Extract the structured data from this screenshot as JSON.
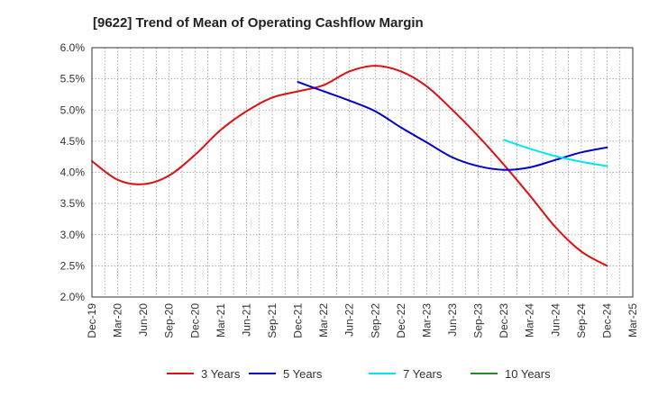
{
  "chart_data": {
    "type": "line",
    "title": "[9622]  Trend of Mean of Operating Cashflow Margin",
    "xlabel": "",
    "ylabel": "",
    "x_ticks": [
      "Dec-19",
      "Mar-20",
      "Jun-20",
      "Sep-20",
      "Dec-20",
      "Mar-21",
      "Jun-21",
      "Sep-21",
      "Dec-21",
      "Mar-22",
      "Jun-22",
      "Sep-22",
      "Dec-22",
      "Mar-23",
      "Jun-23",
      "Sep-23",
      "Dec-23",
      "Mar-24",
      "Jun-24",
      "Sep-24",
      "Dec-24",
      "Mar-25"
    ],
    "y_ticks": [
      "2.0%",
      "2.5%",
      "3.0%",
      "3.5%",
      "4.0%",
      "4.5%",
      "5.0%",
      "5.5%",
      "6.0%"
    ],
    "ylim": [
      2.0,
      6.0
    ],
    "grid": true,
    "series": [
      {
        "name": "3 Years",
        "color": "#dd1111",
        "values": [
          4.18,
          3.88,
          3.81,
          3.95,
          4.28,
          4.68,
          4.98,
          5.2,
          5.3,
          5.4,
          5.62,
          5.71,
          5.62,
          5.38,
          5.0,
          4.58,
          4.12,
          3.63,
          3.12,
          2.73,
          2.5,
          null
        ]
      },
      {
        "name": "5 Years",
        "color": "#0000cc",
        "values": [
          null,
          null,
          null,
          null,
          null,
          null,
          null,
          null,
          5.45,
          5.3,
          5.15,
          4.98,
          4.72,
          4.48,
          4.24,
          4.1,
          4.04,
          4.08,
          4.2,
          4.32,
          4.4,
          null
        ]
      },
      {
        "name": "7 Years",
        "color": "#00e5ee",
        "values": [
          null,
          null,
          null,
          null,
          null,
          null,
          null,
          null,
          null,
          null,
          null,
          null,
          null,
          null,
          null,
          null,
          4.52,
          4.38,
          4.26,
          4.17,
          4.1,
          null
        ]
      },
      {
        "name": "10 Years",
        "color": "#228b22",
        "values": [
          null,
          null,
          null,
          null,
          null,
          null,
          null,
          null,
          null,
          null,
          null,
          null,
          null,
          null,
          null,
          null,
          null,
          null,
          null,
          null,
          null,
          null
        ]
      }
    ],
    "legend_position": "bottom"
  }
}
